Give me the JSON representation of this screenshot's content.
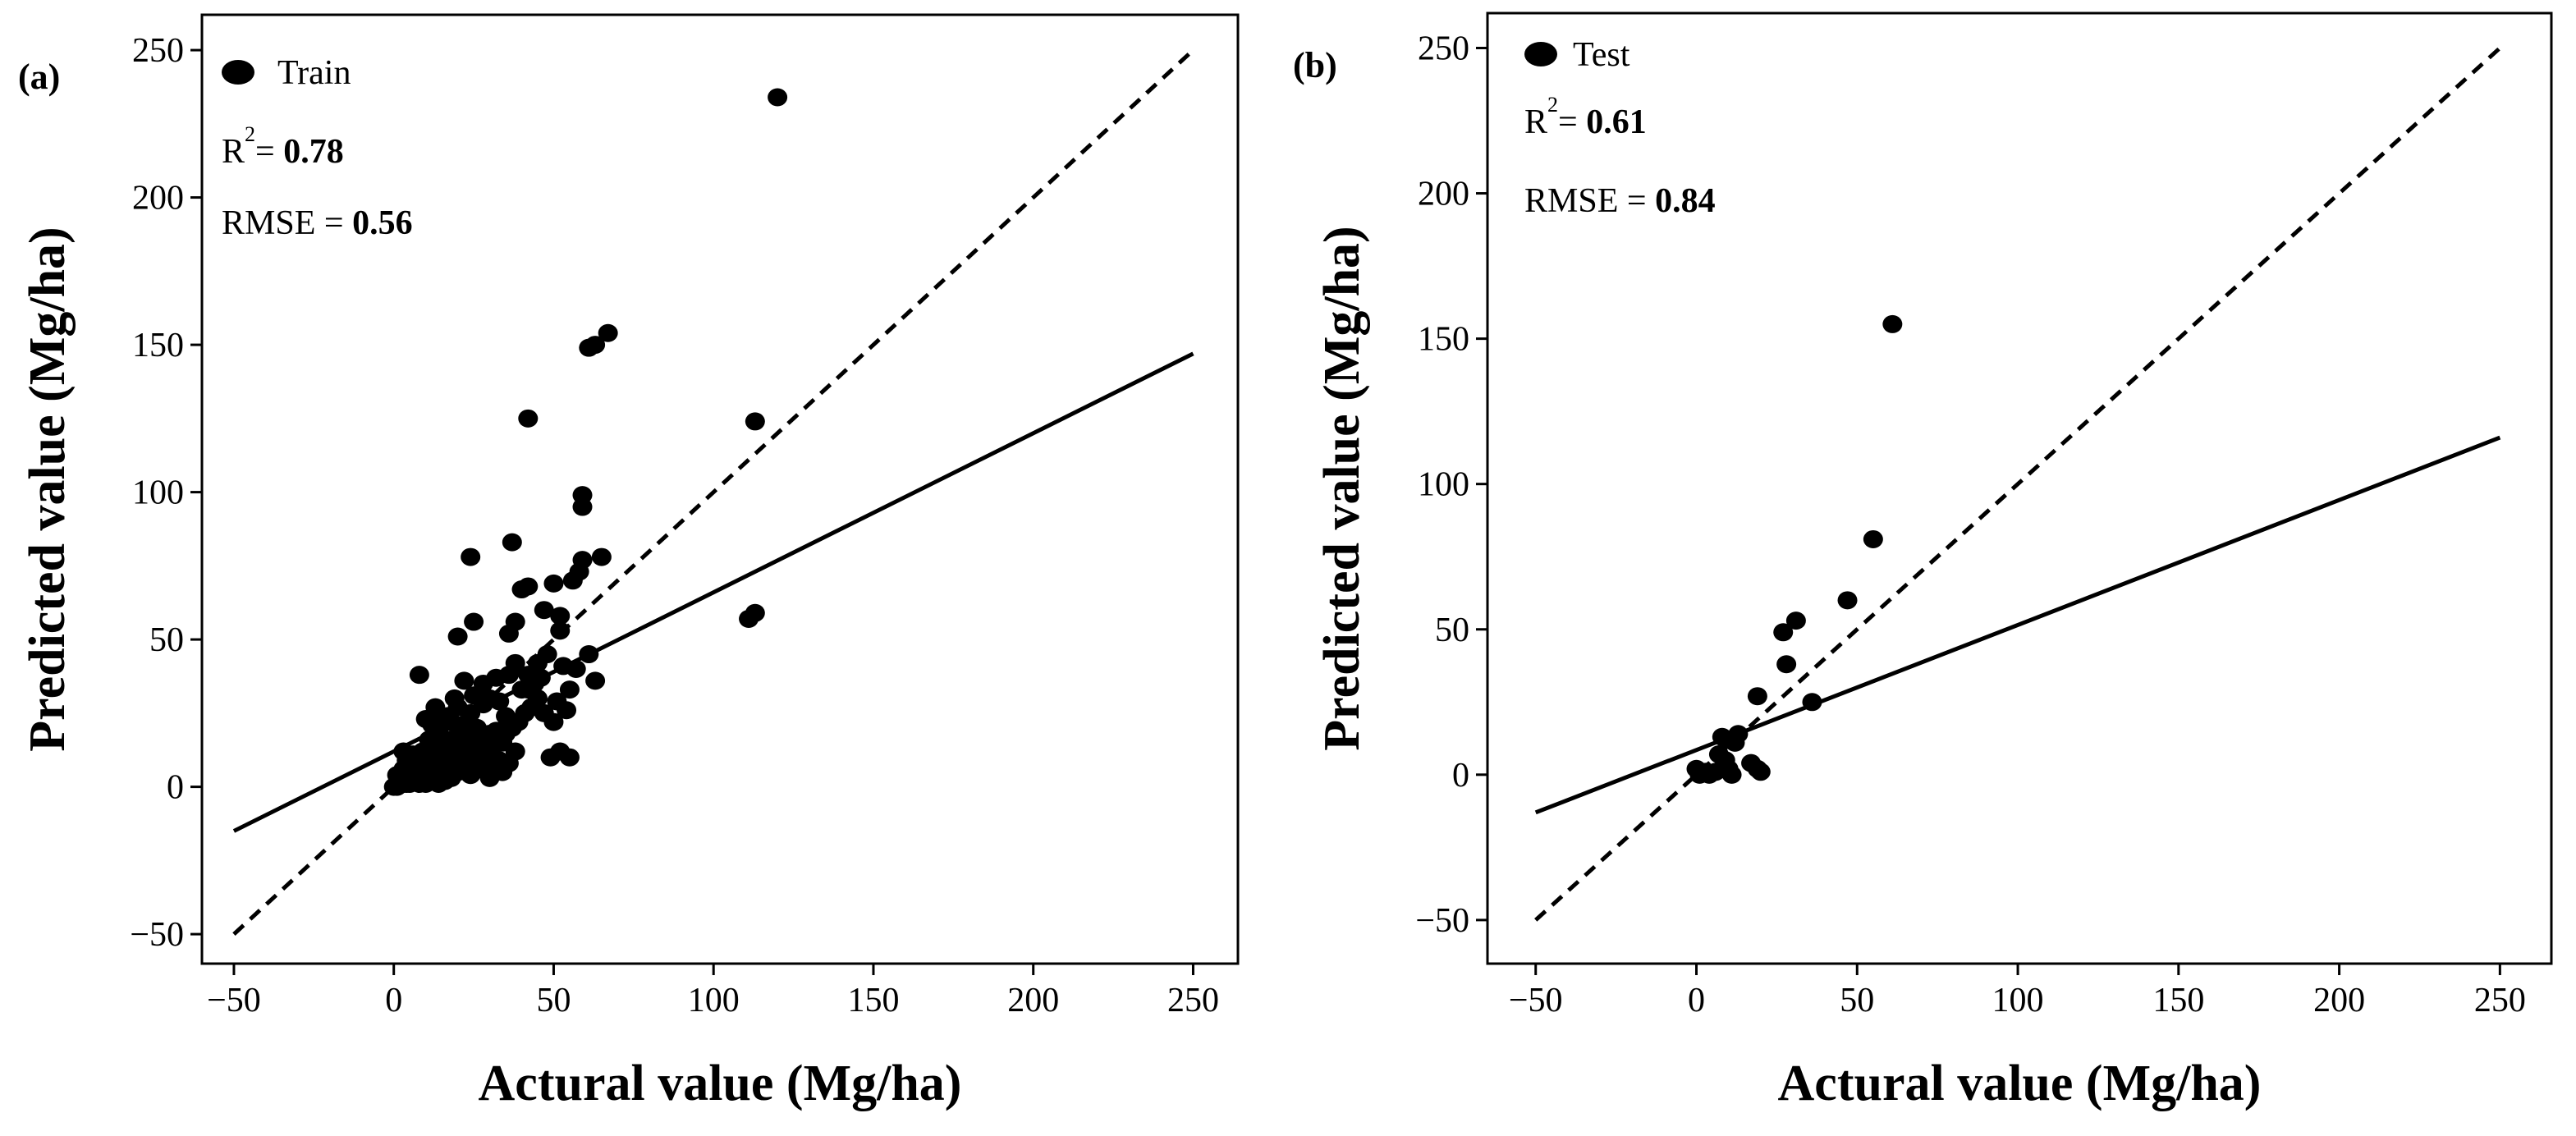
{
  "figure": {
    "background": "#ffffff",
    "ink": "#000000"
  },
  "chart_data": [
    {
      "type": "scatter",
      "panel_label": "(a)",
      "legend": "Train",
      "r2_label": "R",
      "r2_sup": "2",
      "r2_eq": "= ",
      "r2_value": "0.78",
      "rmse_label": "RMSE = ",
      "rmse_value": "0.56",
      "xlabel": "Actural value (Mg/ha)",
      "ylabel": "Predicted value (Mg/ha)",
      "xlim": [
        -60,
        264
      ],
      "ylim": [
        -60,
        262
      ],
      "xticks": [
        -50,
        0,
        50,
        100,
        150,
        200,
        250
      ],
      "yticks": [
        -50,
        0,
        50,
        100,
        150,
        200,
        250
      ],
      "xtick_labels": [
        "−50",
        "0",
        "50",
        "100",
        "150",
        "200",
        "250"
      ],
      "ytick_labels": [
        "−50",
        "0",
        "50",
        "100",
        "150",
        "200",
        "250"
      ],
      "identity_line": {
        "style": "dashed",
        "from": [
          -50,
          -50
        ],
        "to": [
          250,
          250
        ]
      },
      "fit_line": {
        "style": "solid",
        "from": [
          -50,
          -15
        ],
        "to": [
          250,
          147
        ]
      },
      "points": [
        [
          120,
          234
        ],
        [
          67,
          154
        ],
        [
          63,
          150
        ],
        [
          61,
          149
        ],
        [
          113,
          124
        ],
        [
          42,
          125
        ],
        [
          113,
          59
        ],
        [
          111,
          57
        ],
        [
          59,
          99
        ],
        [
          59,
          95
        ],
        [
          65,
          78
        ],
        [
          59,
          77
        ],
        [
          58,
          73
        ],
        [
          24,
          78
        ],
        [
          37,
          83
        ],
        [
          42,
          68
        ],
        [
          40,
          67
        ],
        [
          50,
          69
        ],
        [
          56,
          70
        ],
        [
          38,
          56
        ],
        [
          25,
          56
        ],
        [
          52,
          58
        ],
        [
          47,
          60
        ],
        [
          36,
          52
        ],
        [
          20,
          51
        ],
        [
          52,
          53
        ],
        [
          61,
          45
        ],
        [
          57,
          40
        ],
        [
          63,
          36
        ],
        [
          48,
          45
        ],
        [
          45,
          42
        ],
        [
          38,
          42
        ],
        [
          42,
          38
        ],
        [
          36,
          38
        ],
        [
          32,
          37
        ],
        [
          44,
          35
        ],
        [
          40,
          33
        ],
        [
          55,
          33
        ],
        [
          51,
          29
        ],
        [
          54,
          26
        ],
        [
          50,
          22
        ],
        [
          52,
          12
        ],
        [
          49,
          10
        ],
        [
          55,
          10
        ],
        [
          42,
          33
        ],
        [
          8,
          38
        ],
        [
          33,
          29
        ],
        [
          30,
          30
        ],
        [
          25,
          31
        ],
        [
          28,
          28
        ],
        [
          24,
          25
        ],
        [
          20,
          27
        ],
        [
          17,
          24
        ],
        [
          15,
          22
        ],
        [
          14,
          19
        ],
        [
          12,
          21
        ],
        [
          10,
          23
        ],
        [
          22,
          20
        ],
        [
          26,
          20
        ],
        [
          30,
          18
        ],
        [
          34,
          15
        ],
        [
          38,
          12
        ],
        [
          36,
          8
        ],
        [
          33,
          9
        ],
        [
          31,
          7
        ],
        [
          28,
          9
        ],
        [
          25,
          7
        ],
        [
          22,
          14
        ],
        [
          20,
          12
        ],
        [
          18,
          16
        ],
        [
          16,
          14
        ],
        [
          14,
          10
        ],
        [
          12,
          13
        ],
        [
          11,
          16
        ],
        [
          10,
          9
        ],
        [
          9,
          12
        ],
        [
          8,
          7
        ],
        [
          7,
          10
        ],
        [
          6,
          5
        ],
        [
          5,
          8
        ],
        [
          4,
          3
        ],
        [
          3,
          6
        ],
        [
          2,
          2
        ],
        [
          1,
          4
        ],
        [
          0,
          0
        ],
        [
          1,
          0
        ],
        [
          3,
          1
        ],
        [
          5,
          1
        ],
        [
          7,
          2
        ],
        [
          9,
          3
        ],
        [
          11,
          4
        ],
        [
          13,
          5
        ],
        [
          15,
          6
        ],
        [
          17,
          7
        ],
        [
          19,
          8
        ],
        [
          21,
          9
        ],
        [
          23,
          10
        ],
        [
          25,
          11
        ],
        [
          27,
          12
        ],
        [
          29,
          13
        ],
        [
          31,
          14
        ],
        [
          33,
          16
        ],
        [
          35,
          18
        ],
        [
          37,
          20
        ],
        [
          39,
          22
        ],
        [
          41,
          25
        ],
        [
          43,
          27
        ],
        [
          45,
          30
        ],
        [
          18,
          3
        ],
        [
          16,
          2
        ],
        [
          14,
          1
        ],
        [
          12,
          2
        ],
        [
          10,
          1
        ],
        [
          8,
          1
        ],
        [
          6,
          2
        ],
        [
          4,
          1
        ],
        [
          2,
          1
        ],
        [
          6,
          11
        ],
        [
          4,
          9
        ],
        [
          3,
          12
        ],
        [
          18,
          22
        ],
        [
          21,
          17
        ],
        [
          23,
          19
        ],
        [
          26,
          15
        ],
        [
          29,
          11
        ],
        [
          32,
          19
        ],
        [
          35,
          24
        ],
        [
          28,
          35
        ],
        [
          19,
          30
        ],
        [
          13,
          27
        ],
        [
          11,
          7
        ],
        [
          9,
          5
        ],
        [
          7,
          4
        ],
        [
          15,
          12
        ],
        [
          17,
          10
        ],
        [
          20,
          5
        ],
        [
          24,
          4
        ],
        [
          27,
          6
        ],
        [
          30,
          3
        ],
        [
          34,
          5
        ],
        [
          46,
          37
        ],
        [
          53,
          41
        ],
        [
          47,
          25
        ],
        [
          22,
          36
        ]
      ]
    },
    {
      "type": "scatter",
      "panel_label": "(b)",
      "legend": "Test",
      "r2_label": "R",
      "r2_sup": "2",
      "r2_eq": "= ",
      "r2_value": "0.61",
      "rmse_label": "RMSE = ",
      "rmse_value": "0.84",
      "xlabel": "Actural value (Mg/ha)",
      "ylabel": "Predicted value (Mg/ha)",
      "xlim": [
        -65,
        266
      ],
      "ylim": [
        -65,
        262
      ],
      "xticks": [
        -50,
        0,
        50,
        100,
        150,
        200,
        250
      ],
      "yticks": [
        -50,
        0,
        50,
        100,
        150,
        200,
        250
      ],
      "xtick_labels": [
        "−50",
        "0",
        "50",
        "100",
        "150",
        "200",
        "250"
      ],
      "ytick_labels": [
        "−50",
        "0",
        "50",
        "100",
        "150",
        "200",
        "250"
      ],
      "identity_line": {
        "style": "dashed",
        "from": [
          -50,
          -50
        ],
        "to": [
          250,
          250
        ]
      },
      "fit_line": {
        "style": "solid",
        "from": [
          -50,
          -13
        ],
        "to": [
          250,
          116
        ]
      },
      "points": [
        [
          61,
          155
        ],
        [
          55,
          81
        ],
        [
          47,
          60
        ],
        [
          31,
          53
        ],
        [
          27,
          49
        ],
        [
          28,
          38
        ],
        [
          36,
          25
        ],
        [
          19,
          27
        ],
        [
          17,
          4
        ],
        [
          19,
          2
        ],
        [
          20,
          1
        ],
        [
          13,
          14
        ],
        [
          10,
          12
        ],
        [
          8,
          13
        ],
        [
          12,
          11
        ],
        [
          7,
          7
        ],
        [
          9,
          5
        ],
        [
          8,
          2
        ],
        [
          6,
          1
        ],
        [
          3,
          1
        ],
        [
          0,
          2
        ],
        [
          1,
          0
        ],
        [
          4,
          0
        ],
        [
          10,
          2
        ],
        [
          11,
          0
        ]
      ]
    }
  ]
}
